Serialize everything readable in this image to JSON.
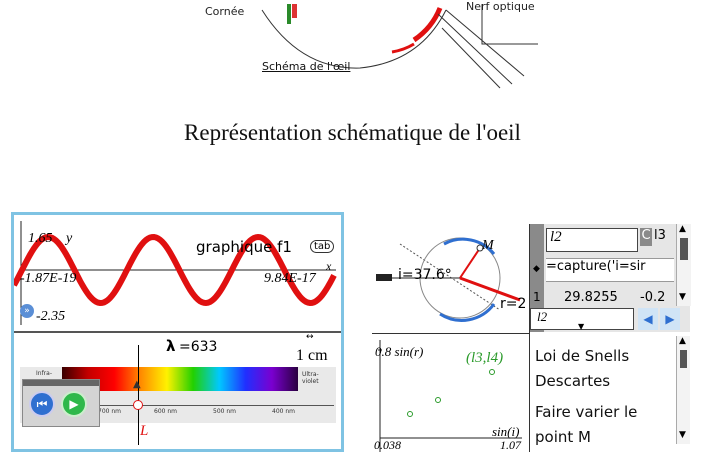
{
  "eye_diagram": {
    "label_cornea": "Cornée",
    "label_nerve": "Nerf optique",
    "caption": "Schéma de l'œil"
  },
  "page_title": "Représentation schématique de l'oeil",
  "wave_panel": {
    "y_max": "1.65",
    "y_var": "y",
    "x_var": "x",
    "graph_label": "graphique f1",
    "tab_label": "tab",
    "x_min": "-1.87E-19",
    "x_max": "9.84E-17",
    "y_min": "-2.35"
  },
  "spectrum_panel": {
    "lambda_label": "λ",
    "lambda_value": "=633",
    "scale_label": "1 cm",
    "infra_label": "Infra-",
    "uv_label": "Ultra-violet",
    "tick_labels": [
      "700 nm",
      "600 nm",
      "500 nm",
      "400 nm"
    ],
    "marker_label": "L"
  },
  "refraction_panel": {
    "point_label": "M",
    "angle_label": "i=37.6°",
    "r_label": "r=2"
  },
  "spreadsheet": {
    "column_a": "l2",
    "column_c": "C",
    "column_d": "l3",
    "formula": "=capture('i=sir",
    "row_number": "1",
    "row_value": "29.8255",
    "row_value_2": "-0.2",
    "selected_cell": "l2"
  },
  "plot_panel": {
    "y_axis_label": "0.8 sin(r)",
    "point_label": "(l3,l4)",
    "x_axis_label": "sin(i)",
    "x_min": "0.038",
    "x_max": "1.07"
  },
  "notes_panel": {
    "line1": "Loi de Snells",
    "line2": "Descartes",
    "line3": "Faire varier le",
    "line4": "point M"
  },
  "colors": {
    "panel_border": "#7fc3e3",
    "wave": "#e01010",
    "accent_blue": "#2f6fd0",
    "play_green": "#2fb84a"
  }
}
